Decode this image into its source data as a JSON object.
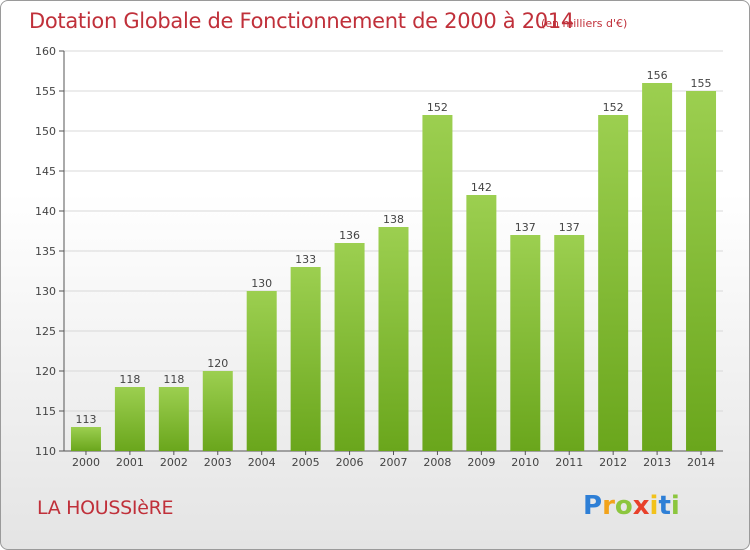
{
  "title": "Dotation Globale de Fonctionnement de 2000 à 2014",
  "unit_note": "(en milliers d'€)",
  "commune": "LA HOUSSIèRE",
  "logo": {
    "letters": [
      "P",
      "r",
      "o",
      "x",
      "i",
      "t",
      "i"
    ],
    "text": "Proxiti"
  },
  "colors": {
    "title": "#c0303a",
    "bar_top": "#9ccf50",
    "bar_bottom": "#6aa61c",
    "grid": "#d8d8d8"
  },
  "chart_data": {
    "type": "bar",
    "title": "Dotation Globale de Fonctionnement de 2000 à 2014",
    "xlabel": "",
    "ylabel": "",
    "categories": [
      "2000",
      "2001",
      "2002",
      "2003",
      "2004",
      "2005",
      "2006",
      "2007",
      "2008",
      "2009",
      "2010",
      "2011",
      "2012",
      "2013",
      "2014"
    ],
    "values": [
      113,
      118,
      118,
      120,
      130,
      133,
      136,
      138,
      152,
      142,
      137,
      137,
      152,
      156,
      155
    ],
    "ylim": [
      110,
      160
    ],
    "yticks": [
      110,
      115,
      120,
      125,
      130,
      135,
      140,
      145,
      150,
      155,
      160
    ],
    "grid": true,
    "data_labels": true
  }
}
